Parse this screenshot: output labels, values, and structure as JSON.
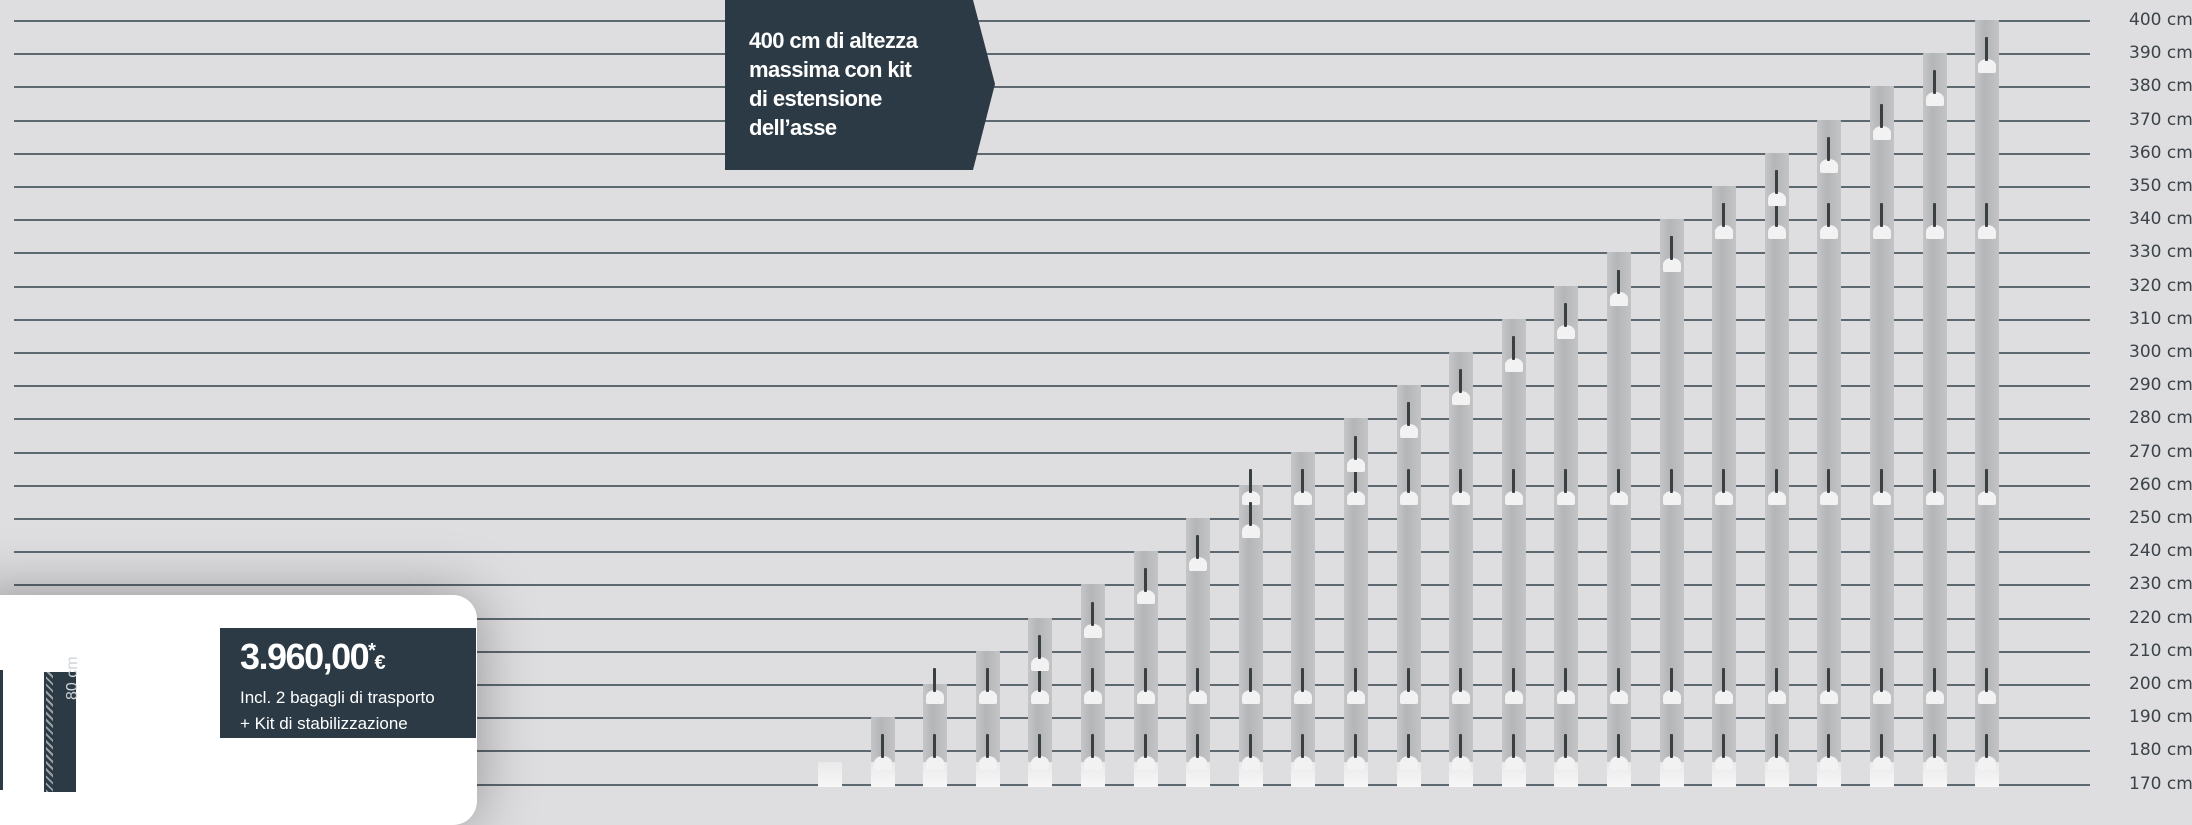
{
  "banner": {
    "line1": "400 cm di altezza",
    "line2": "massima con kit",
    "line3": "di estensione",
    "line4": "dell’asse"
  },
  "height_labels": [
    "400 cm",
    "390 cm",
    "380 cm",
    "370 cm",
    "360 cm",
    "350 cm",
    "340 cm",
    "330 cm",
    "320 cm",
    "310 cm",
    "300 cm",
    "290 cm",
    "280 cm",
    "270 cm",
    "260 cm",
    "250 cm",
    "240 cm",
    "230 cm",
    "220 cm",
    "210 cm",
    "200 cm",
    "190 cm",
    "180 cm",
    "170 cm"
  ],
  "column_heights_cm": [
    170,
    190,
    200,
    210,
    220,
    230,
    240,
    250,
    260,
    270,
    280,
    290,
    300,
    310,
    320,
    330,
    340,
    350,
    360,
    370,
    380,
    390,
    400
  ],
  "price": {
    "amount": "3.960,00",
    "asterisk": "*",
    "currency": "€",
    "line1": "Incl. 2 bagagli di trasporto",
    "line2": "+ Kit di stabilizzazione"
  },
  "dimension_label": "80 cm",
  "colors": {
    "dark": "#2b3a44",
    "background": "#dedddf"
  }
}
